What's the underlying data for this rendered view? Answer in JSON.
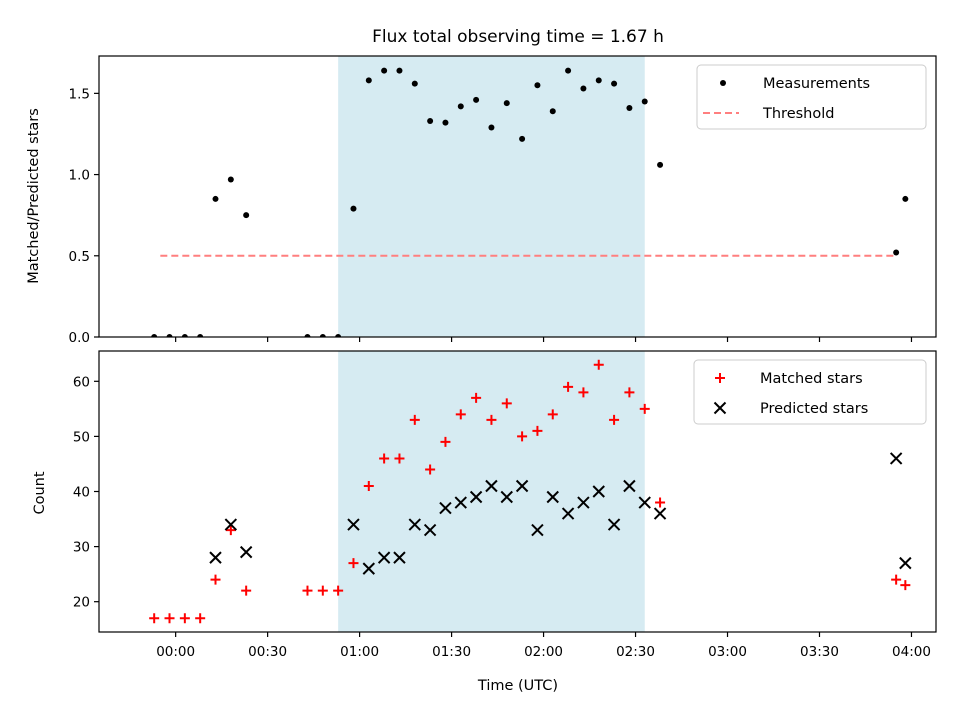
{
  "chart_data": [
    {
      "type": "scatter",
      "title": "Flux total observing time = 1.67 h",
      "xlabel": "",
      "ylabel": "Matched/Predicted stars",
      "xlim": [
        "23:35",
        "04:08"
      ],
      "ylim": [
        0,
        1.73
      ],
      "yticks": [
        "0.0",
        "0.5",
        "1.0",
        "1.5"
      ],
      "shaded_span": {
        "start": "00:53",
        "end": "02:33",
        "color": "#add8e6"
      },
      "legend_position": "upper right",
      "series": [
        {
          "name": "Measurements",
          "marker": "dot",
          "color": "#000000",
          "points": [
            {
              "x": "23:58",
              "y": 0.0
            },
            {
              "x": "23:53",
              "y": 0.0
            },
            {
              "x": "00:03",
              "y": 0.0
            },
            {
              "x": "00:08",
              "y": 0.0
            },
            {
              "x": "00:13",
              "y": 0.85
            },
            {
              "x": "00:18",
              "y": 0.97
            },
            {
              "x": "00:23",
              "y": 0.75
            },
            {
              "x": "00:43",
              "y": 0.0
            },
            {
              "x": "00:48",
              "y": 0.0
            },
            {
              "x": "00:53",
              "y": 0.0
            },
            {
              "x": "00:58",
              "y": 0.79
            },
            {
              "x": "01:03",
              "y": 1.58
            },
            {
              "x": "01:08",
              "y": 1.64
            },
            {
              "x": "01:13",
              "y": 1.64
            },
            {
              "x": "01:18",
              "y": 1.56
            },
            {
              "x": "01:23",
              "y": 1.33
            },
            {
              "x": "01:28",
              "y": 1.32
            },
            {
              "x": "01:33",
              "y": 1.42
            },
            {
              "x": "01:38",
              "y": 1.46
            },
            {
              "x": "01:43",
              "y": 1.29
            },
            {
              "x": "01:48",
              "y": 1.44
            },
            {
              "x": "01:53",
              "y": 1.22
            },
            {
              "x": "01:58",
              "y": 1.55
            },
            {
              "x": "02:03",
              "y": 1.39
            },
            {
              "x": "02:08",
              "y": 1.64
            },
            {
              "x": "02:13",
              "y": 1.53
            },
            {
              "x": "02:18",
              "y": 1.58
            },
            {
              "x": "02:23",
              "y": 1.56
            },
            {
              "x": "02:28",
              "y": 1.41
            },
            {
              "x": "02:33",
              "y": 1.45
            },
            {
              "x": "02:38",
              "y": 1.06
            },
            {
              "x": "03:55",
              "y": 0.52
            },
            {
              "x": "03:58",
              "y": 0.85
            }
          ]
        },
        {
          "name": "Threshold",
          "marker": "dashed-line",
          "color": "#ff7f7f",
          "x": [
            "23:55",
            "03:55"
          ],
          "y": 0.5
        }
      ]
    },
    {
      "type": "scatter",
      "title": "",
      "xlabel": "Time (UTC)",
      "ylabel": "Count",
      "xlim": [
        "23:35",
        "04:08"
      ],
      "ylim": [
        14.5,
        65.5
      ],
      "yticks": [
        "20",
        "30",
        "40",
        "50",
        "60"
      ],
      "xticks": [
        "00:00",
        "00:30",
        "01:00",
        "01:30",
        "02:00",
        "02:30",
        "03:00",
        "03:30",
        "04:00"
      ],
      "shaded_span": {
        "start": "00:53",
        "end": "02:33",
        "color": "#add8e6"
      },
      "legend_position": "upper right",
      "series": [
        {
          "name": "Matched stars",
          "marker": "plus",
          "color": "#ff0000",
          "points": [
            {
              "x": "23:53",
              "y": 17
            },
            {
              "x": "23:58",
              "y": 17
            },
            {
              "x": "00:03",
              "y": 17
            },
            {
              "x": "00:08",
              "y": 17
            },
            {
              "x": "00:13",
              "y": 24
            },
            {
              "x": "00:18",
              "y": 33
            },
            {
              "x": "00:23",
              "y": 22
            },
            {
              "x": "00:43",
              "y": 22
            },
            {
              "x": "00:48",
              "y": 22
            },
            {
              "x": "00:53",
              "y": 22
            },
            {
              "x": "00:58",
              "y": 27
            },
            {
              "x": "01:03",
              "y": 41
            },
            {
              "x": "01:08",
              "y": 46
            },
            {
              "x": "01:13",
              "y": 46
            },
            {
              "x": "01:18",
              "y": 53
            },
            {
              "x": "01:23",
              "y": 44
            },
            {
              "x": "01:28",
              "y": 49
            },
            {
              "x": "01:33",
              "y": 54
            },
            {
              "x": "01:38",
              "y": 57
            },
            {
              "x": "01:43",
              "y": 53
            },
            {
              "x": "01:48",
              "y": 56
            },
            {
              "x": "01:53",
              "y": 50
            },
            {
              "x": "01:58",
              "y": 51
            },
            {
              "x": "02:03",
              "y": 54
            },
            {
              "x": "02:08",
              "y": 59
            },
            {
              "x": "02:13",
              "y": 58
            },
            {
              "x": "02:18",
              "y": 63
            },
            {
              "x": "02:23",
              "y": 53
            },
            {
              "x": "02:28",
              "y": 58
            },
            {
              "x": "02:33",
              "y": 55
            },
            {
              "x": "02:38",
              "y": 38
            },
            {
              "x": "03:55",
              "y": 24
            },
            {
              "x": "03:58",
              "y": 23
            }
          ]
        },
        {
          "name": "Predicted stars",
          "marker": "x",
          "color": "#000000",
          "points": [
            {
              "x": "00:13",
              "y": 28
            },
            {
              "x": "00:18",
              "y": 34
            },
            {
              "x": "00:23",
              "y": 29
            },
            {
              "x": "00:58",
              "y": 34
            },
            {
              "x": "01:03",
              "y": 26
            },
            {
              "x": "01:08",
              "y": 28
            },
            {
              "x": "01:13",
              "y": 28
            },
            {
              "x": "01:18",
              "y": 34
            },
            {
              "x": "01:23",
              "y": 33
            },
            {
              "x": "01:28",
              "y": 37
            },
            {
              "x": "01:33",
              "y": 38
            },
            {
              "x": "01:38",
              "y": 39
            },
            {
              "x": "01:43",
              "y": 41
            },
            {
              "x": "01:48",
              "y": 39
            },
            {
              "x": "01:53",
              "y": 41
            },
            {
              "x": "01:58",
              "y": 33
            },
            {
              "x": "02:03",
              "y": 39
            },
            {
              "x": "02:08",
              "y": 36
            },
            {
              "x": "02:13",
              "y": 38
            },
            {
              "x": "02:18",
              "y": 40
            },
            {
              "x": "02:23",
              "y": 34
            },
            {
              "x": "02:28",
              "y": 41
            },
            {
              "x": "02:33",
              "y": 38
            },
            {
              "x": "02:38",
              "y": 36
            },
            {
              "x": "03:55",
              "y": 46
            },
            {
              "x": "03:58",
              "y": 27
            }
          ]
        }
      ]
    }
  ]
}
